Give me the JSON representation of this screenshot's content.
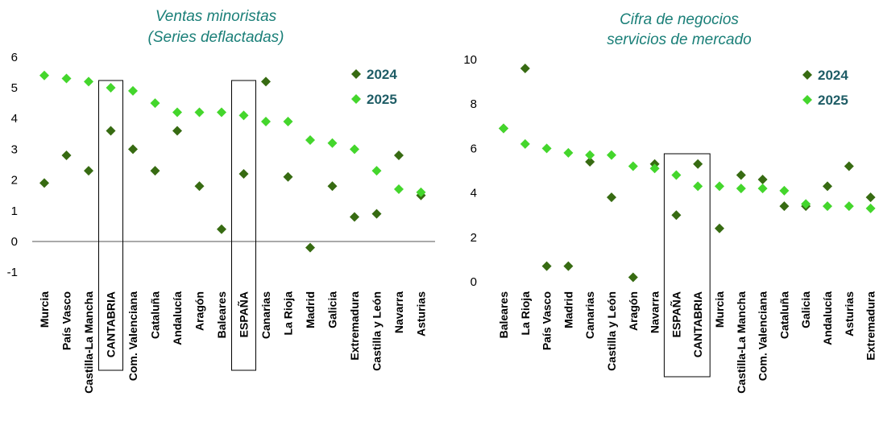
{
  "colors": {
    "c2024": "#376b12",
    "c2025": "#44d62c",
    "title": "#1a7f78",
    "legend_text": "#1f5d66"
  },
  "chart_data": [
    {
      "type": "scatter",
      "title": "Ventas minoristas",
      "subtitle": "(Series deflactadas)",
      "ylim": [
        -1,
        6
      ],
      "yticks": [
        "-1",
        "0",
        "1",
        "2",
        "3",
        "4",
        "5",
        "6"
      ],
      "grid": false,
      "legend_position": "top-right",
      "categories": [
        "Murcia",
        "País Vasco",
        "Castilla-La Mancha",
        "CANTABRIA",
        "Com. Valenciana",
        "Cataluña",
        "Andalucía",
        "Aragón",
        "Baleares",
        "ESPAÑA",
        "Canarias",
        "La Rioja",
        "Madrid",
        "Galicia",
        "Extremadura",
        "Castilla y León",
        "Navarra",
        "Asturias"
      ],
      "highlighted": [
        "CANTABRIA",
        "ESPAÑA"
      ],
      "series": [
        {
          "name": "2024",
          "marker": "diamond",
          "values": [
            1.9,
            2.8,
            2.3,
            3.6,
            3.0,
            2.3,
            3.6,
            1.8,
            0.4,
            2.2,
            5.2,
            2.1,
            -0.2,
            1.8,
            0.8,
            0.9,
            2.8,
            1.5
          ]
        },
        {
          "name": "2025",
          "marker": "diamond",
          "values": [
            5.4,
            5.3,
            5.2,
            5.0,
            4.9,
            4.5,
            4.2,
            4.2,
            4.2,
            4.1,
            3.9,
            3.9,
            3.3,
            3.2,
            3.0,
            2.3,
            1.7,
            1.6
          ]
        }
      ]
    },
    {
      "type": "scatter",
      "title": "Cifra de negocios",
      "subtitle": "servicios de mercado",
      "ylim": [
        0,
        10
      ],
      "yticks": [
        "0",
        "2",
        "4",
        "6",
        "8",
        "10"
      ],
      "grid": false,
      "legend_position": "top-right",
      "categories": [
        "Baleares",
        "La Rioja",
        "País Vasco",
        "Madrid",
        "Canarias",
        "Castilla y León",
        "Aragón",
        "Navarra",
        "ESPAÑA",
        "CANTABRIA",
        "Murcia",
        "Castilla-La Mancha",
        "Com. Valenciana",
        "Cataluña",
        "Galicia",
        "Andalucía",
        "Asturias",
        "Extremadura"
      ],
      "highlighted": [
        "ESPAÑA",
        "CANTABRIA"
      ],
      "series": [
        {
          "name": "2024",
          "marker": "diamond",
          "values": [
            6.9,
            9.6,
            0.7,
            0.7,
            5.4,
            3.8,
            0.2,
            5.3,
            3.0,
            5.3,
            2.4,
            4.8,
            4.6,
            3.4,
            3.4,
            4.3,
            5.2,
            3.8
          ]
        },
        {
          "name": "2025",
          "marker": "diamond",
          "values": [
            6.9,
            6.2,
            6.0,
            5.8,
            5.7,
            5.7,
            5.2,
            5.1,
            4.8,
            4.3,
            4.3,
            4.2,
            4.2,
            4.1,
            3.5,
            3.4,
            3.4,
            3.3
          ]
        }
      ]
    }
  ]
}
